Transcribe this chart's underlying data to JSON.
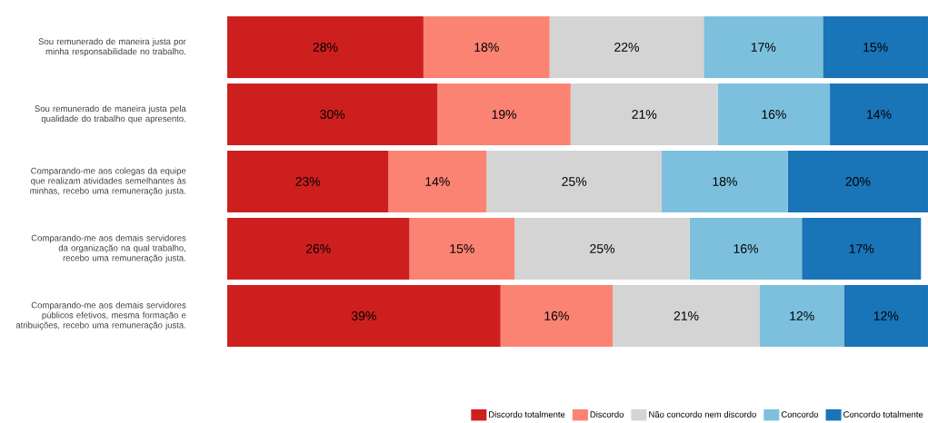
{
  "chart_data": {
    "type": "bar",
    "orientation": "horizontal",
    "stacked": true,
    "legend": "bottom right",
    "categories": [
      "Sou remunerado de maneira justa por minha responsabilidade no trabalho.",
      "Sou remunerado de maneira justa pela qualidade do trabalho que apresento.",
      "Comparando-me aos colegas da equipe que realizam atividades semelhantes às minhas, recebo uma remuneração justa.",
      "Comparando-me aos demais servidores da organização na qual trabalho, recebo uma remuneração justa.",
      "Comparando-me aos demais servidores públicos efetivos, mesma formação e atribuições, recebo uma remuneração justa."
    ],
    "series": [
      {
        "name": "Discordo totalmente",
        "color": "#ce1f1f",
        "values": [
          28,
          30,
          23,
          26,
          39
        ],
        "value_labels": [
          "28%",
          "30%",
          "23%",
          "26%",
          "39%"
        ]
      },
      {
        "name": "Discordo",
        "color": "#fb8373",
        "values": [
          18,
          19,
          14,
          15,
          16
        ],
        "value_labels": [
          "18%",
          "19%",
          "14%",
          "15%",
          "16%"
        ]
      },
      {
        "name": "Não concordo nem discordo",
        "color": "#d4d4d4",
        "values": [
          22,
          21,
          25,
          25,
          21
        ],
        "value_labels": [
          "22%",
          "21%",
          "25%",
          "25%",
          "21%"
        ]
      },
      {
        "name": "Concordo",
        "color": "#7dc0dd",
        "values": [
          17,
          16,
          18,
          16,
          12
        ],
        "value_labels": [
          "17%",
          "16%",
          "18%",
          "16%",
          "12%"
        ]
      },
      {
        "name": "Concordo totalmente",
        "color": "#1a74b8",
        "values": [
          15,
          14,
          20,
          17,
          12
        ],
        "value_labels": [
          "15%",
          "14%",
          "20%",
          "17%",
          "12%"
        ]
      }
    ]
  }
}
